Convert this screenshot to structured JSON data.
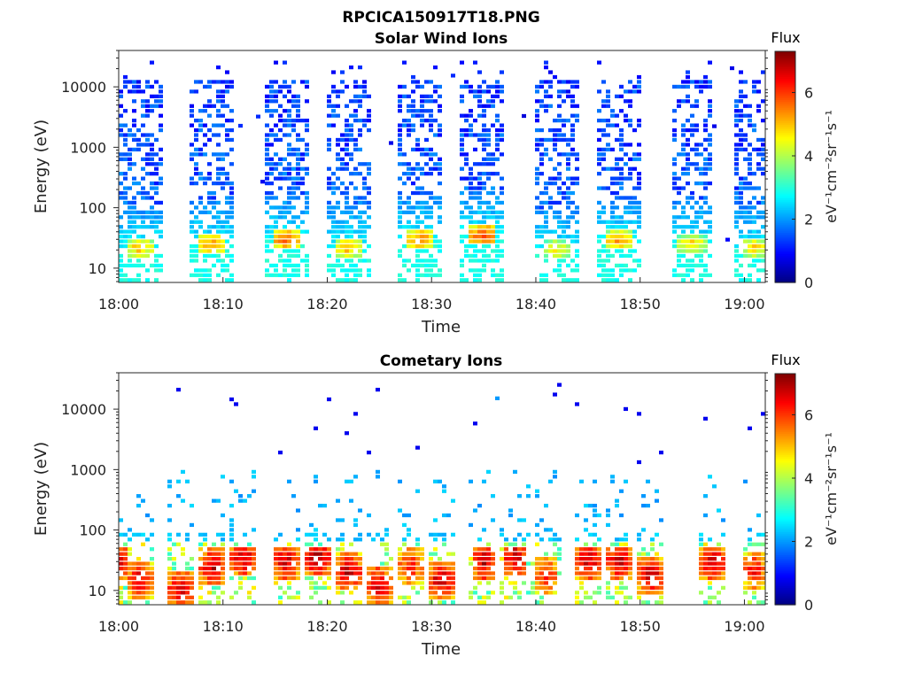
{
  "figure_title": "RPCICA150917T18.PNG",
  "colors": {
    "background": "#ffffff",
    "axis": "#262626",
    "colormap": "jet"
  },
  "chart_data": [
    {
      "type": "heatmap",
      "title": "Solar Wind Ions",
      "xlabel": "Time",
      "ylabel": "Energy (eV)",
      "y_scale": "log",
      "ylim": [
        5.8,
        40000
      ],
      "xlim_minutes_after_18_00": [
        0,
        62
      ],
      "x_ticks": [
        "18:00",
        "18:10",
        "18:20",
        "18:30",
        "18:40",
        "18:50",
        "19:00"
      ],
      "y_ticks": [
        "10",
        "100",
        "1000",
        "10000"
      ],
      "colorbar": {
        "title": "Flux",
        "unit_label": "eV⁻¹cm⁻²sr⁻¹s⁻¹",
        "ticks": [
          "0",
          "2",
          "4",
          "6"
        ],
        "range": [
          0,
          7.3
        ]
      },
      "bursts": [
        {
          "time": "18:02",
          "peak_energy_eV": 22,
          "peak_flux": 5.2
        },
        {
          "time": "18:09",
          "peak_energy_eV": 25,
          "peak_flux": 5.5
        },
        {
          "time": "18:16",
          "peak_energy_eV": 30,
          "peak_flux": 5.8
        },
        {
          "time": "18:22",
          "peak_energy_eV": 22,
          "peak_flux": 5.3
        },
        {
          "time": "18:29",
          "peak_energy_eV": 30,
          "peak_flux": 5.6
        },
        {
          "time": "18:35",
          "peak_energy_eV": 35,
          "peak_flux": 6.0
        },
        {
          "time": "18:42",
          "peak_energy_eV": 20,
          "peak_flux": 4.8
        },
        {
          "time": "18:48",
          "peak_energy_eV": 28,
          "peak_flux": 5.4
        },
        {
          "time": "18:55",
          "peak_energy_eV": 25,
          "peak_flux": 5.0
        },
        {
          "time": "19:01",
          "peak_energy_eV": 22,
          "peak_flux": 5.0
        }
      ]
    },
    {
      "type": "heatmap",
      "title": "Cometary Ions",
      "xlabel": "Time",
      "ylabel": "Energy (eV)",
      "y_scale": "log",
      "ylim": [
        5.8,
        40000
      ],
      "xlim_minutes_after_18_00": [
        0,
        62
      ],
      "x_ticks": [
        "18:00",
        "18:10",
        "18:20",
        "18:30",
        "18:40",
        "18:50",
        "19:00"
      ],
      "y_ticks": [
        "10",
        "100",
        "1000",
        "10000"
      ],
      "colorbar": {
        "title": "Flux",
        "unit_label": "eV⁻¹cm⁻²sr⁻¹s⁻¹",
        "ticks": [
          "0",
          "2",
          "4",
          "6"
        ],
        "range": [
          0,
          7.3
        ]
      },
      "bursts": [
        {
          "time": "18:00",
          "peak_energy_eV": 30,
          "peak_flux": 7.0
        },
        {
          "time": "18:02",
          "peak_energy_eV": 15,
          "peak_flux": 6.8
        },
        {
          "time": "18:06",
          "peak_energy_eV": 10,
          "peak_flux": 7.0
        },
        {
          "time": "18:09",
          "peak_energy_eV": 25,
          "peak_flux": 7.0
        },
        {
          "time": "18:12",
          "peak_energy_eV": 35,
          "peak_flux": 7.0
        },
        {
          "time": "18:16",
          "peak_energy_eV": 30,
          "peak_flux": 7.0
        },
        {
          "time": "18:19",
          "peak_energy_eV": 35,
          "peak_flux": 7.2
        },
        {
          "time": "18:22",
          "peak_energy_eV": 20,
          "peak_flux": 7.0
        },
        {
          "time": "18:25",
          "peak_energy_eV": 12,
          "peak_flux": 7.0
        },
        {
          "time": "18:28",
          "peak_energy_eV": 25,
          "peak_flux": 6.5
        },
        {
          "time": "18:31",
          "peak_energy_eV": 15,
          "peak_flux": 7.0
        },
        {
          "time": "18:35",
          "peak_energy_eV": 30,
          "peak_flux": 7.0
        },
        {
          "time": "18:38",
          "peak_energy_eV": 35,
          "peak_flux": 7.0
        },
        {
          "time": "18:41",
          "peak_energy_eV": 18,
          "peak_flux": 6.5
        },
        {
          "time": "18:45",
          "peak_energy_eV": 30,
          "peak_flux": 7.0
        },
        {
          "time": "18:48",
          "peak_energy_eV": 30,
          "peak_flux": 7.0
        },
        {
          "time": "18:51",
          "peak_energy_eV": 18,
          "peak_flux": 7.0
        },
        {
          "time": "18:57",
          "peak_energy_eV": 30,
          "peak_flux": 7.0
        },
        {
          "time": "19:01",
          "peak_energy_eV": 22,
          "peak_flux": 6.5
        }
      ]
    }
  ]
}
